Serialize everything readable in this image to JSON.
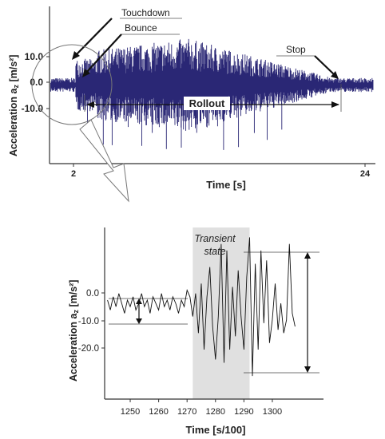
{
  "chart_data": [
    {
      "type": "line",
      "xlabel": "Time [s]",
      "ylabel": "Acceleration a",
      "ylabel_sub": "z",
      "ylabel_unit": " [m/s²]",
      "x_ticks": [
        "2",
        "24"
      ],
      "y_ticks": [
        "10.0",
        "0.0",
        "-10.0"
      ],
      "ylim": [
        -18,
        18
      ],
      "xlim": [
        0,
        27.5
      ],
      "series_color": "#2a2775",
      "annotations": {
        "touchdown": "Touchdown",
        "bounce": "Bounce",
        "stop": "Stop",
        "rollout": "Rollout"
      },
      "events": {
        "touchdown_s": 2.2,
        "bounce_s": 3.2,
        "stop_s": 23.5
      }
    },
    {
      "type": "line",
      "xlabel": "Time [s/100]",
      "ylabel": "Acceleration a",
      "ylabel_sub": "z",
      "ylabel_unit": " [m/s²]",
      "x_ticks": [
        "1250",
        "1260",
        "1270",
        "1280",
        "1290",
        "1300"
      ],
      "y_ticks": [
        "0.0",
        "-10.0",
        "-20.0"
      ],
      "xlim": [
        1241,
        1318
      ],
      "ylim": [
        -37,
        15
      ],
      "transient_state": {
        "label_line1": "Transient",
        "label_line2": "state",
        "start": 1272,
        "end": 1292
      },
      "x": [
        1242,
        1243,
        1244,
        1245,
        1246,
        1247,
        1248,
        1249,
        1250,
        1251,
        1252,
        1253,
        1254,
        1255,
        1256,
        1257,
        1258,
        1259,
        1260,
        1261,
        1262,
        1263,
        1264,
        1265,
        1266,
        1267,
        1268,
        1269,
        1270,
        1271,
        1272,
        1273,
        1274,
        1275,
        1276,
        1277,
        1278,
        1279,
        1280,
        1281,
        1282,
        1283,
        1284,
        1285,
        1286,
        1287,
        1288,
        1289,
        1290,
        1291,
        1292,
        1293,
        1294,
        1295,
        1296,
        1297,
        1298,
        1299,
        1300,
        1301,
        1302,
        1303,
        1304,
        1305,
        1306,
        1307,
        1308
      ],
      "y": [
        -7,
        -10,
        -6,
        -9,
        -5,
        -8,
        -11,
        -7,
        -9,
        -6,
        -10,
        -8,
        -5,
        -9,
        -7,
        -11,
        -6,
        -8,
        -10,
        -5,
        -9,
        -7,
        -10,
        -6,
        -8,
        -11,
        -7,
        -9,
        -4,
        -6,
        -12,
        -5,
        -17,
        -2,
        -22,
        -6,
        3,
        -15,
        -25,
        -12,
        10,
        -26,
        8,
        -22,
        -3,
        -18,
        2,
        -12,
        -22,
        0,
        12,
        -30,
        4,
        -22,
        8,
        -14,
        5,
        -20,
        -13,
        -2,
        -16,
        -8,
        -17,
        -13,
        10,
        -11,
        -15
      ],
      "amplitude_range": [
        -30,
        13
      ],
      "steady_band": [
        -3.5,
        -12.5
      ]
    }
  ]
}
